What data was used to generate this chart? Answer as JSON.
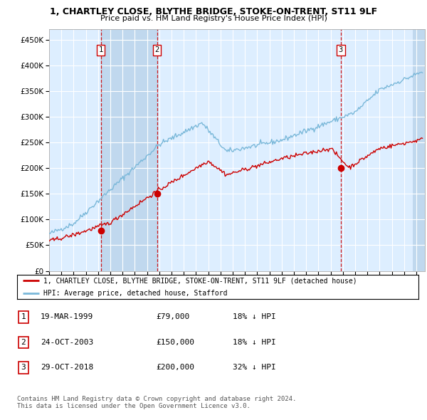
{
  "title": "1, CHARTLEY CLOSE, BLYTHE BRIDGE, STOKE-ON-TRENT, ST11 9LF",
  "subtitle": "Price paid vs. HM Land Registry's House Price Index (HPI)",
  "hpi_label": "HPI: Average price, detached house, Stafford",
  "property_label": "1, CHARTLEY CLOSE, BLYTHE BRIDGE, STOKE-ON-TRENT, ST11 9LF (detached house)",
  "transactions": [
    {
      "num": 1,
      "date": "19-MAR-1999",
      "price": 79000,
      "pct": "18%",
      "dir": "↓"
    },
    {
      "num": 2,
      "date": "24-OCT-2003",
      "price": 150000,
      "pct": "18%",
      "dir": "↓"
    },
    {
      "num": 3,
      "date": "29-OCT-2018",
      "price": 200000,
      "pct": "32%",
      "dir": "↓"
    }
  ],
  "transaction_dates_decimal": [
    1999.22,
    2003.82,
    2018.83
  ],
  "hpi_color": "#7ab8d9",
  "property_color": "#cc0000",
  "dashed_line_color": "#cc0000",
  "background_color": "#ffffff",
  "plot_bg_color": "#ddeeff",
  "shaded_bg_color": "#c0d8ee",
  "grid_color": "#ffffff",
  "ylim": [
    0,
    470000
  ],
  "xlim_start": 1995.0,
  "xlim_end": 2025.7,
  "footer": "Contains HM Land Registry data © Crown copyright and database right 2024.\nThis data is licensed under the Open Government Licence v3.0.",
  "yticks": [
    0,
    50000,
    100000,
    150000,
    200000,
    250000,
    300000,
    350000,
    400000,
    450000
  ]
}
